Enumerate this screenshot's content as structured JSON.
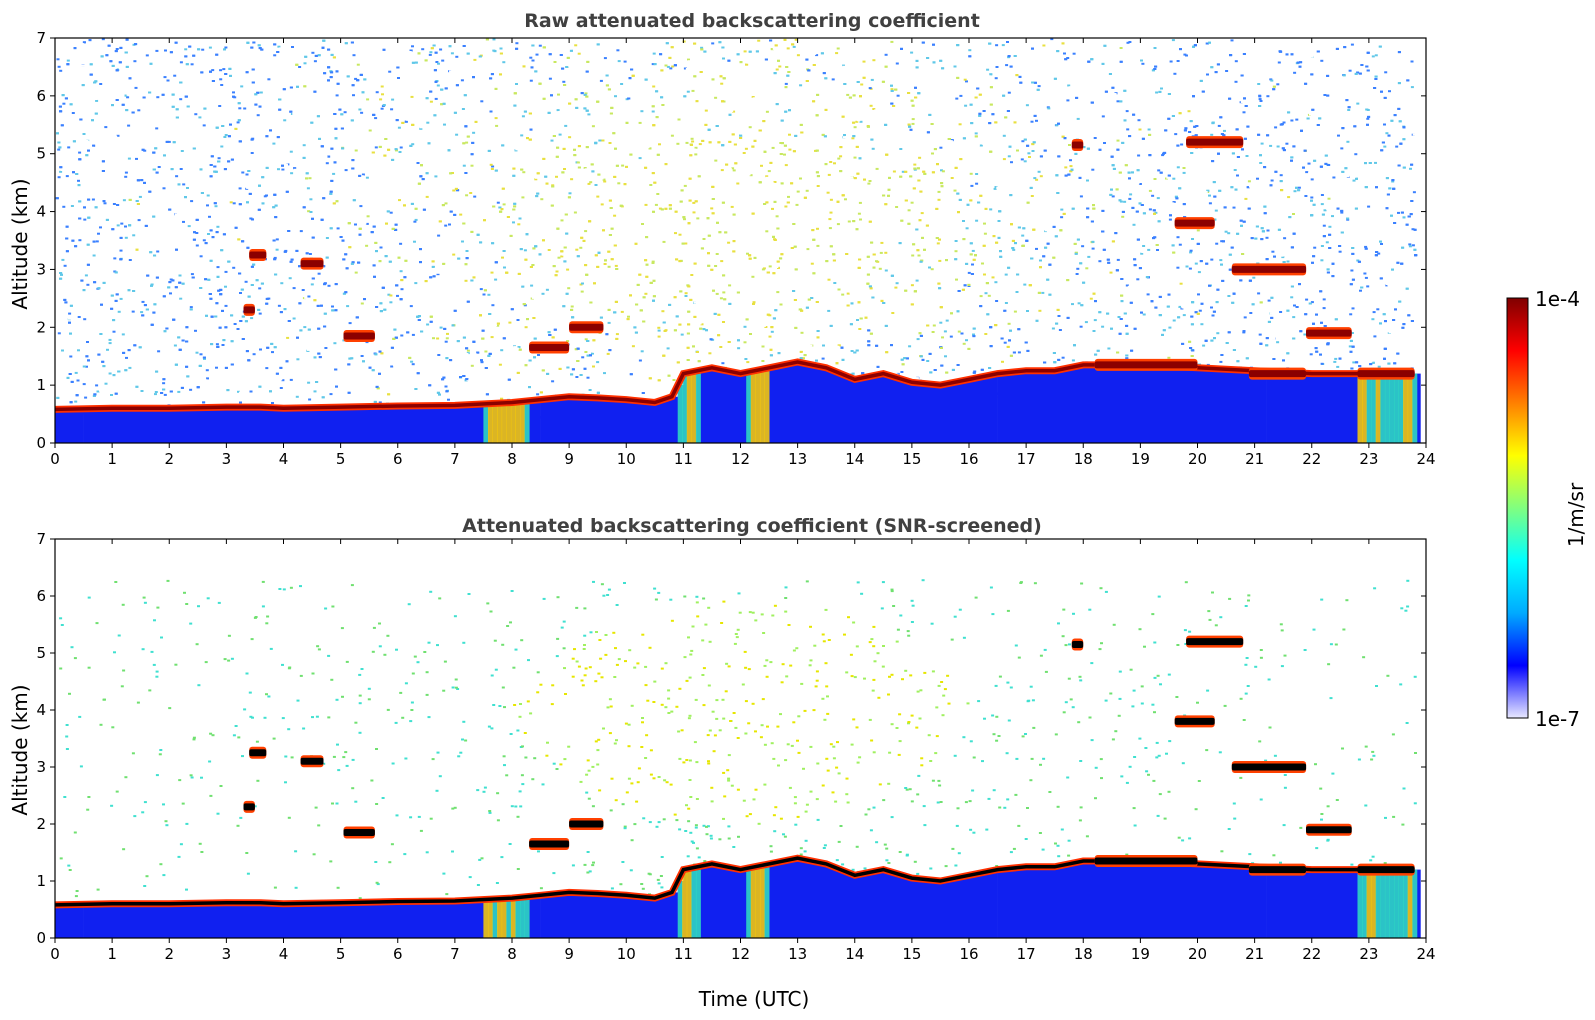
{
  "chart_data": [
    {
      "type": "heatmap",
      "title": "Raw attenuated backscattering coefficient",
      "xlabel": "",
      "ylabel": "Altitude (km)",
      "xlim": [
        0,
        24
      ],
      "ylim": [
        0,
        7
      ],
      "x_ticks": [
        "0",
        "1",
        "2",
        "3",
        "4",
        "5",
        "6",
        "7",
        "8",
        "9",
        "10",
        "11",
        "12",
        "13",
        "14",
        "15",
        "16",
        "17",
        "18",
        "19",
        "20",
        "21",
        "22",
        "23",
        "24"
      ],
      "y_ticks": [
        "0",
        "1",
        "2",
        "3",
        "4",
        "5",
        "6",
        "7"
      ],
      "screened": false,
      "boundary_layer_top_km": [
        [
          0,
          0.58
        ],
        [
          1,
          0.6
        ],
        [
          2,
          0.6
        ],
        [
          3,
          0.62
        ],
        [
          3.6,
          0.62
        ],
        [
          4,
          0.6
        ],
        [
          5,
          0.62
        ],
        [
          6,
          0.64
        ],
        [
          7,
          0.65
        ],
        [
          8,
          0.7
        ],
        [
          8.5,
          0.75
        ],
        [
          9,
          0.8
        ],
        [
          9.5,
          0.78
        ],
        [
          10,
          0.75
        ],
        [
          10.5,
          0.7
        ],
        [
          10.8,
          0.8
        ],
        [
          11,
          1.2
        ],
        [
          11.5,
          1.3
        ],
        [
          12,
          1.2
        ],
        [
          12.5,
          1.3
        ],
        [
          13,
          1.4
        ],
        [
          13.5,
          1.3
        ],
        [
          14,
          1.1
        ],
        [
          14.5,
          1.2
        ],
        [
          15,
          1.05
        ],
        [
          15.5,
          1.0
        ],
        [
          16,
          1.1
        ],
        [
          16.5,
          1.2
        ],
        [
          17,
          1.25
        ],
        [
          17.5,
          1.25
        ],
        [
          18,
          1.35
        ],
        [
          19,
          1.35
        ],
        [
          20,
          1.3
        ],
        [
          21,
          1.25
        ],
        [
          22,
          1.2
        ],
        [
          22.8,
          1.2
        ],
        [
          23.8,
          1.2
        ]
      ],
      "cloud_layers": [
        {
          "start": 3.4,
          "end": 3.7,
          "altitude_km": 3.25
        },
        {
          "start": 3.3,
          "end": 3.5,
          "altitude_km": 2.3
        },
        {
          "start": 4.3,
          "end": 4.7,
          "altitude_km": 3.1
        },
        {
          "start": 5.05,
          "end": 5.6,
          "altitude_km": 1.85
        },
        {
          "start": 8.3,
          "end": 9.0,
          "altitude_km": 1.65
        },
        {
          "start": 9.0,
          "end": 9.6,
          "altitude_km": 2.0
        },
        {
          "start": 17.8,
          "end": 18.0,
          "altitude_km": 5.15
        },
        {
          "start": 19.8,
          "end": 20.8,
          "altitude_km": 5.2
        },
        {
          "start": 19.6,
          "end": 20.3,
          "altitude_km": 3.8
        },
        {
          "start": 20.6,
          "end": 21.9,
          "altitude_km": 3.0
        },
        {
          "start": 21.9,
          "end": 22.7,
          "altitude_km": 1.9
        },
        {
          "start": 18.2,
          "end": 20.0,
          "altitude_km": 1.35
        },
        {
          "start": 20.9,
          "end": 21.9,
          "altitude_km": 1.2
        },
        {
          "start": 22.8,
          "end": 23.8,
          "altitude_km": 1.2
        }
      ]
    },
    {
      "type": "heatmap",
      "title": "Attenuated backscattering coefficient (SNR-screened)",
      "xlabel": "Time (UTC)",
      "ylabel": "Altitude (km)",
      "xlim": [
        0,
        24
      ],
      "ylim": [
        0,
        7
      ],
      "x_ticks": [
        "0",
        "1",
        "2",
        "3",
        "4",
        "5",
        "6",
        "7",
        "8",
        "9",
        "10",
        "11",
        "12",
        "13",
        "14",
        "15",
        "16",
        "17",
        "18",
        "19",
        "20",
        "21",
        "22",
        "23",
        "24"
      ],
      "y_ticks": [
        "0",
        "1",
        "2",
        "3",
        "4",
        "5",
        "6",
        "7"
      ],
      "screened": true,
      "boundary_layer_top_km": [
        [
          0,
          0.58
        ],
        [
          1,
          0.6
        ],
        [
          2,
          0.6
        ],
        [
          3,
          0.62
        ],
        [
          3.6,
          0.62
        ],
        [
          4,
          0.6
        ],
        [
          5,
          0.62
        ],
        [
          6,
          0.64
        ],
        [
          7,
          0.65
        ],
        [
          8,
          0.7
        ],
        [
          8.5,
          0.75
        ],
        [
          9,
          0.8
        ],
        [
          9.5,
          0.78
        ],
        [
          10,
          0.75
        ],
        [
          10.5,
          0.7
        ],
        [
          10.8,
          0.8
        ],
        [
          11,
          1.2
        ],
        [
          11.5,
          1.3
        ],
        [
          12,
          1.2
        ],
        [
          12.5,
          1.3
        ],
        [
          13,
          1.4
        ],
        [
          13.5,
          1.3
        ],
        [
          14,
          1.1
        ],
        [
          14.5,
          1.2
        ],
        [
          15,
          1.05
        ],
        [
          15.5,
          1.0
        ],
        [
          16,
          1.1
        ],
        [
          16.5,
          1.2
        ],
        [
          17,
          1.25
        ],
        [
          17.5,
          1.25
        ],
        [
          18,
          1.35
        ],
        [
          19,
          1.35
        ],
        [
          20,
          1.3
        ],
        [
          21,
          1.25
        ],
        [
          22,
          1.2
        ],
        [
          22.8,
          1.2
        ],
        [
          23.8,
          1.2
        ]
      ],
      "cloud_layers": [
        {
          "start": 3.4,
          "end": 3.7,
          "altitude_km": 3.25
        },
        {
          "start": 3.3,
          "end": 3.5,
          "altitude_km": 2.3
        },
        {
          "start": 4.3,
          "end": 4.7,
          "altitude_km": 3.1
        },
        {
          "start": 5.05,
          "end": 5.6,
          "altitude_km": 1.85
        },
        {
          "start": 8.3,
          "end": 9.0,
          "altitude_km": 1.65
        },
        {
          "start": 9.0,
          "end": 9.6,
          "altitude_km": 2.0
        },
        {
          "start": 17.8,
          "end": 18.0,
          "altitude_km": 5.15
        },
        {
          "start": 19.8,
          "end": 20.8,
          "altitude_km": 5.2
        },
        {
          "start": 19.6,
          "end": 20.3,
          "altitude_km": 3.8
        },
        {
          "start": 20.6,
          "end": 21.9,
          "altitude_km": 3.0
        },
        {
          "start": 21.9,
          "end": 22.7,
          "altitude_km": 1.9
        },
        {
          "start": 18.2,
          "end": 20.0,
          "altitude_km": 1.35
        },
        {
          "start": 20.9,
          "end": 21.9,
          "altitude_km": 1.2
        },
        {
          "start": 22.8,
          "end": 23.8,
          "altitude_km": 1.2
        }
      ]
    }
  ],
  "colorbar": {
    "label": "1/m/sr",
    "max_label": "1e-4",
    "min_label": "1e-7",
    "colormap": "jet",
    "scale": "log",
    "range": [
      1e-07,
      0.0001
    ],
    "colors": [
      "#e8e8ff",
      "#0000ff",
      "#00aaff",
      "#00ffff",
      "#80ff80",
      "#ffff00",
      "#ff8000",
      "#ff0000",
      "#800000"
    ]
  }
}
